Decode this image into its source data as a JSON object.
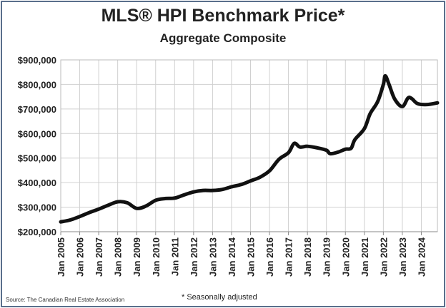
{
  "chart_data": {
    "type": "line",
    "title": "MLS® HPI Benchmark Price*",
    "subtitle": "Aggregate Composite",
    "xlabel": "",
    "ylabel": "",
    "ylim": [
      200000,
      900000
    ],
    "xlim": [
      2005,
      2024.85
    ],
    "grid": true,
    "yticks": [
      "$200,000",
      "$300,000",
      "$400,000",
      "$500,000",
      "$600,000",
      "$700,000",
      "$800,000",
      "$900,000"
    ],
    "ytick_values": [
      200000,
      300000,
      400000,
      500000,
      600000,
      700000,
      800000,
      900000
    ],
    "xticks": [
      "Jan 2005",
      "Jan 2006",
      "Jan 2007",
      "Jan 2008",
      "Jan 2009",
      "Jan 2010",
      "Jan 2011",
      "Jan 2012",
      "Jan 2013",
      "Jan 2014",
      "Jan 2015",
      "Jan 2016",
      "Jan 2017",
      "Jan 2018",
      "Jan 2019",
      "Jan 2020",
      "Jan 2021",
      "Jan 2022",
      "Jan 2023",
      "Jan 2024"
    ],
    "series": [
      {
        "name": "Aggregate Composite",
        "x": [
          2005,
          2005.5,
          2006,
          2006.5,
          2007,
          2007.5,
          2008,
          2008.5,
          2009,
          2009.5,
          2010,
          2010.5,
          2011,
          2011.5,
          2012,
          2012.5,
          2013,
          2013.5,
          2014,
          2014.5,
          2015,
          2015.5,
          2016,
          2016.5,
          2017,
          2017.3,
          2017.6,
          2018,
          2018.5,
          2019,
          2019.2,
          2019.6,
          2020,
          2020.3,
          2020.5,
          2021,
          2021.3,
          2021.7,
          2022,
          2022.1,
          2022.3,
          2022.6,
          2023,
          2023.3,
          2023.5,
          2023.8,
          2024.3,
          2024.85
        ],
        "values": [
          240000,
          248000,
          262000,
          278000,
          292000,
          308000,
          322000,
          318000,
          295000,
          305000,
          328000,
          335000,
          337000,
          350000,
          362000,
          368000,
          368000,
          372000,
          383000,
          392000,
          407000,
          422000,
          448000,
          495000,
          522000,
          560000,
          545000,
          548000,
          542000,
          532000,
          518000,
          524000,
          536000,
          540000,
          575000,
          620000,
          680000,
          730000,
          800000,
          835000,
          800000,
          740000,
          710000,
          745000,
          742000,
          722000,
          718000,
          725000
        ],
        "color": "#111111"
      }
    ],
    "source": "Source: The Canadian Real Estate Association",
    "note": "* Seasonally adjusted"
  }
}
